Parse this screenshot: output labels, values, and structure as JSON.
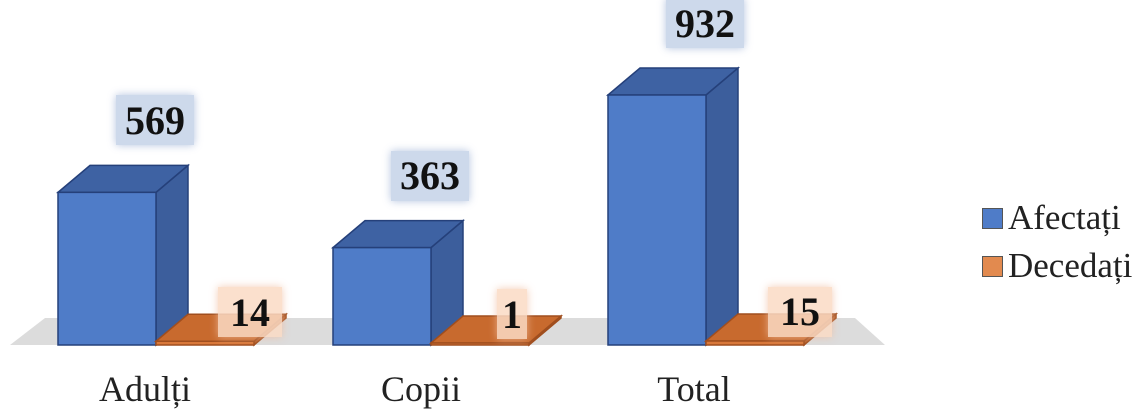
{
  "chart_data": {
    "type": "bar",
    "categories": [
      "Adulți",
      "Copii",
      "Total"
    ],
    "series": [
      {
        "name": "Afectați",
        "values": [
          569,
          363,
          932
        ],
        "color": "#4f7cc8"
      },
      {
        "name": "Decedați",
        "values": [
          14,
          1,
          15
        ],
        "color": "#d9783a"
      }
    ],
    "ylim": [
      0,
      1000
    ],
    "grid": false,
    "legend_position": "right"
  }
}
